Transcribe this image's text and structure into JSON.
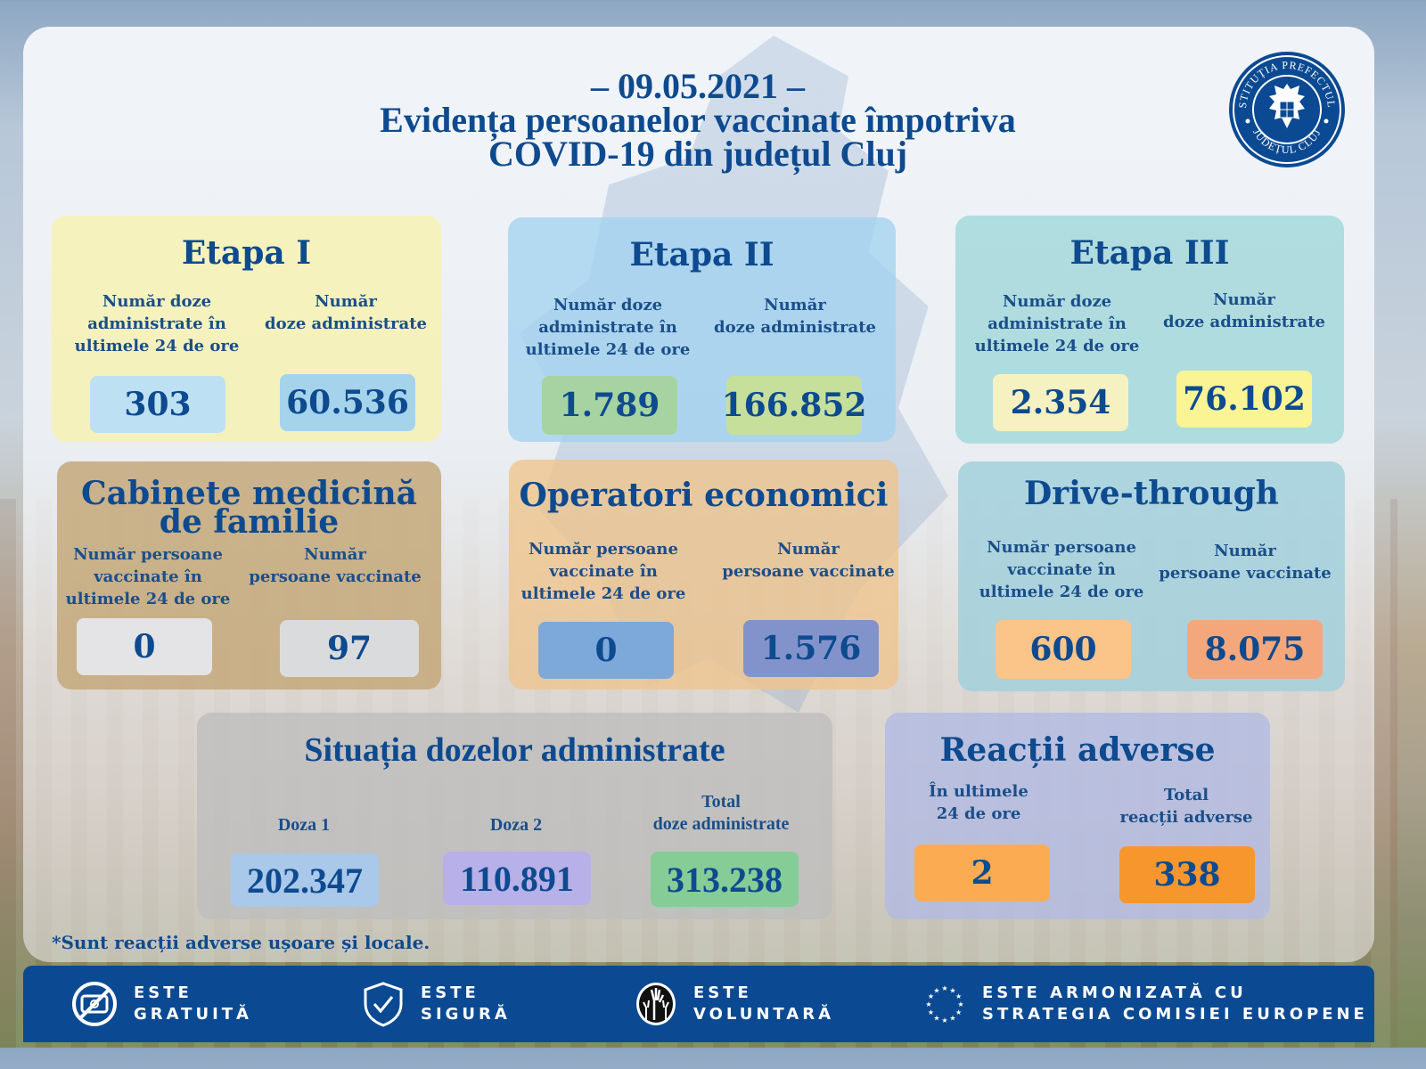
{
  "header": {
    "date": "– 09.05.2021 –",
    "title_line1": "Evidența persoanelor vaccinate împotriva",
    "title_line2": "COVID-19 din județul Cluj"
  },
  "logo": {
    "top_text": "INSTITUȚIA PREFECTULUI",
    "bottom_text": "JUDEȚUL CLUJ",
    "icon": "coat-of-arms-eagle"
  },
  "cards": {
    "etapa1": {
      "title": "Etapa I",
      "label_24h": "Număr doze administrate în ultimele 24 de ore",
      "label_24h_lines": [
        "Număr doze",
        "administrate în",
        "ultimele 24 de ore"
      ],
      "label_total_lines": [
        "Număr",
        "doze administrate"
      ],
      "value_24h": "303",
      "value_total": "60.536"
    },
    "etapa2": {
      "title": "Etapa II",
      "label_24h_lines": [
        "Număr doze",
        "administrate în",
        "ultimele 24 de ore"
      ],
      "label_total_lines": [
        "Număr",
        "doze administrate"
      ],
      "value_24h": "1.789",
      "value_total": "166.852"
    },
    "etapa3": {
      "title": "Etapa III",
      "label_24h_lines": [
        "Număr doze",
        "administrate în",
        "ultimele 24 de ore"
      ],
      "label_total_lines": [
        "Număr",
        "doze administrate"
      ],
      "value_24h": "2.354",
      "value_total": "76.102"
    },
    "cabinete": {
      "title_line1": "Cabinete medicină",
      "title_line2": "de familie",
      "label_24h_lines": [
        "Număr persoane",
        "vaccinate în",
        "ultimele 24 de ore"
      ],
      "label_total_lines": [
        "Număr",
        "persoane vaccinate"
      ],
      "value_24h": "0",
      "value_total": "97"
    },
    "operatori": {
      "title": "Operatori economici",
      "label_24h_lines": [
        "Număr persoane",
        "vaccinate în",
        "ultimele 24 de ore"
      ],
      "label_total_lines": [
        "Număr",
        "persoane vaccinate"
      ],
      "value_24h": "0",
      "value_total": "1.576"
    },
    "drive": {
      "title": "Drive-through",
      "label_24h_lines": [
        "Număr persoane",
        "vaccinate în",
        "ultimele 24 de ore"
      ],
      "label_total_lines": [
        "Număr",
        "persoane vaccinate"
      ],
      "value_24h": "600",
      "value_total": "8.075"
    },
    "situatia": {
      "title": "Situația dozelor administrate",
      "doza1_label": "Doza 1",
      "doza2_label": "Doza 2",
      "total_label_lines": [
        "Total",
        "doze administrate"
      ],
      "doza1_value": "202.347",
      "doza2_value": "110.891",
      "total_value": "313.238"
    },
    "reactii": {
      "title": "Reacții adverse",
      "label_24h_lines": [
        "În ultimele",
        "24 de ore"
      ],
      "label_total_lines": [
        "Total",
        "reacții adverse"
      ],
      "value_24h": "2",
      "value_total": "338"
    }
  },
  "footnote": "*Sunt reacții adverse ușoare și locale.",
  "footer": {
    "items": [
      {
        "icon": "no-money-icon",
        "line1": "ESTE",
        "line2": "GRATUITĂ"
      },
      {
        "icon": "shield-check-icon",
        "line1": "ESTE",
        "line2": "SIGURĂ"
      },
      {
        "icon": "raised-hands-icon",
        "line1": "ESTE",
        "line2": "VOLUNTARĂ"
      },
      {
        "icon": "eu-stars-icon",
        "line1": "ESTE ARMONIZATĂ CU",
        "line2": "STRATEGIA COMISIEI EUROPENE"
      }
    ]
  },
  "colors": {
    "primary_text": "#0d4a8f",
    "footer_bg": "#0b4a93",
    "etapa1_bg": "#f6f1b4",
    "etapa2_bg": "#a8d4ee",
    "etapa3_bg": "#a9d9dc",
    "cabinete_bg": "#c9b08a",
    "operatori_bg": "#efc99a",
    "drive_bg": "#a8d2de",
    "situatia_bg": "#c8c8c8",
    "reactii_bg": "#b5bde0"
  }
}
